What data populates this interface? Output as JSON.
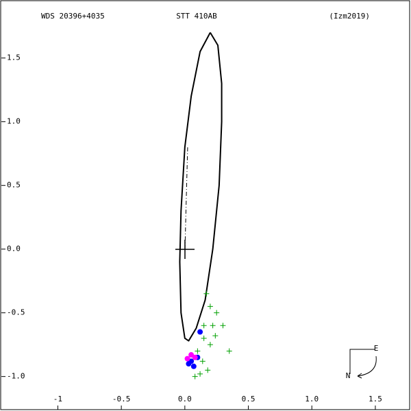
{
  "chart_data": {
    "type": "scatter",
    "header": [
      "WDS 20396+4035",
      "STT 410AB",
      "(Izm2019)"
    ],
    "compass": {
      "east": "E",
      "north": "N"
    },
    "xlim": [
      -1.45,
      1.77
    ],
    "ylim": [
      -1.26,
      1.95
    ],
    "xticks": [
      -1.0,
      -0.5,
      {
        "value": 0,
        "label": "0.0"
      },
      0.5,
      {
        "value": 1,
        "label": "1.0"
      },
      1.5
    ],
    "yticks": [
      1.5,
      {
        "value": 1,
        "label": "1.0"
      },
      0.5,
      {
        "value": 0,
        "label": "0.0"
      },
      -0.5,
      {
        "value": -1,
        "label": "-1.0"
      }
    ],
    "series": [
      {
        "color": "#000000",
        "line": true,
        "x": [
          0.2,
          0.26,
          0.29,
          0.29,
          0.27,
          0.22,
          0.16,
          0.09,
          0.03,
          0.0,
          -0.03,
          -0.04,
          -0.03,
          0.0,
          0.05,
          0.12,
          0.2
        ],
        "y": [
          1.7,
          1.6,
          1.3,
          1.0,
          0.5,
          0.0,
          -0.4,
          -0.62,
          -0.72,
          -0.7,
          -0.5,
          -0.1,
          0.3,
          0.8,
          1.2,
          1.55,
          1.7
        ]
      },
      {
        "color": "#00a000",
        "line": false,
        "x": [
          0.17,
          0.2,
          0.25,
          0.22,
          0.15,
          0.3,
          0.35,
          0.2,
          0.15,
          0.1,
          0.18,
          0.12,
          0.08,
          0.14,
          0.24
        ],
        "y": [
          -0.35,
          -0.45,
          -0.5,
          -0.6,
          -0.6,
          -0.6,
          -0.8,
          -0.75,
          -0.7,
          -0.8,
          -0.95,
          -0.98,
          -1.0,
          -0.88,
          -0.68
        ]
      },
      {
        "color": "#0000ff",
        "line": false,
        "x": [
          0.05,
          0.1,
          0.03,
          0.12,
          0.07
        ],
        "y": [
          -0.88,
          -0.85,
          -0.9,
          -0.65,
          -0.92
        ]
      },
      {
        "color": "#ff00ff",
        "line": false,
        "x": [
          0.05,
          0.08,
          0.02
        ],
        "y": [
          -0.83,
          -0.85,
          -0.86
        ]
      }
    ]
  }
}
